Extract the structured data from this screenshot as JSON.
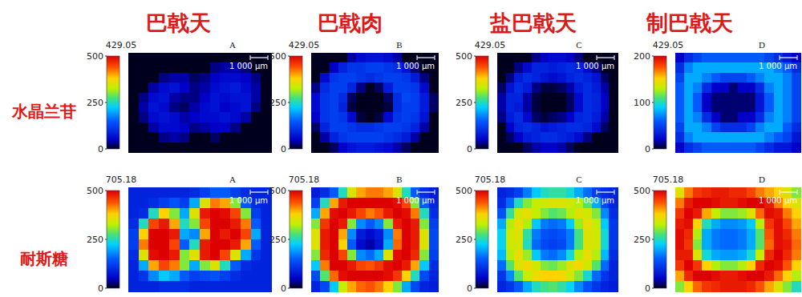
{
  "figure": {
    "column_labels": [
      "巴戟天",
      "巴戟肉",
      "盐巴戟天",
      "制巴戟天"
    ],
    "row_labels": [
      "水晶兰苷",
      "耐斯糖"
    ]
  },
  "chart_data": [
    {
      "type": "heatmap",
      "title": "429.05",
      "label": "A",
      "scale_bar": "1 000 μm",
      "color_range": [
        0,
        500
      ],
      "color_ticks": [
        0,
        250,
        500
      ],
      "cells": [
        [
          0,
          0,
          0,
          0,
          0,
          0,
          0,
          0,
          0,
          0,
          0,
          0,
          0,
          0
        ],
        [
          0,
          0,
          0,
          0,
          0,
          0,
          0,
          0,
          30,
          40,
          40,
          30,
          0,
          0
        ],
        [
          0,
          0,
          0,
          30,
          40,
          40,
          20,
          30,
          50,
          60,
          60,
          50,
          30,
          0
        ],
        [
          0,
          0,
          40,
          60,
          70,
          50,
          30,
          40,
          60,
          70,
          80,
          60,
          40,
          0
        ],
        [
          0,
          30,
          60,
          70,
          40,
          30,
          30,
          50,
          70,
          60,
          70,
          70,
          40,
          0
        ],
        [
          0,
          40,
          70,
          60,
          30,
          20,
          40,
          60,
          70,
          50,
          60,
          70,
          30,
          0
        ],
        [
          0,
          30,
          60,
          70,
          60,
          40,
          50,
          60,
          60,
          70,
          60,
          40,
          0,
          0
        ],
        [
          0,
          0,
          40,
          60,
          60,
          50,
          30,
          40,
          50,
          50,
          30,
          0,
          0,
          0
        ],
        [
          0,
          0,
          0,
          30,
          40,
          30,
          0,
          0,
          20,
          0,
          0,
          0,
          0,
          0
        ],
        [
          0,
          0,
          0,
          0,
          0,
          0,
          0,
          0,
          0,
          0,
          0,
          0,
          0,
          0
        ]
      ]
    },
    {
      "type": "heatmap",
      "title": "429.05",
      "label": "B",
      "scale_bar": "1 000 μm",
      "color_range": [
        0,
        500
      ],
      "color_ticks": [
        0,
        250,
        500
      ],
      "cells": [
        [
          0,
          0,
          0,
          0,
          40,
          60,
          70,
          70,
          60,
          40,
          0,
          0,
          0,
          0
        ],
        [
          0,
          0,
          50,
          90,
          110,
          110,
          120,
          120,
          110,
          100,
          70,
          30,
          0,
          0
        ],
        [
          0,
          60,
          110,
          120,
          120,
          110,
          100,
          110,
          120,
          120,
          110,
          80,
          30,
          0
        ],
        [
          30,
          100,
          120,
          120,
          90,
          30,
          0,
          20,
          80,
          120,
          120,
          110,
          60,
          0
        ],
        [
          60,
          110,
          120,
          100,
          20,
          0,
          0,
          0,
          20,
          100,
          130,
          120,
          80,
          20
        ],
        [
          60,
          110,
          120,
          90,
          10,
          0,
          0,
          0,
          10,
          100,
          120,
          120,
          80,
          20
        ],
        [
          50,
          110,
          120,
          110,
          60,
          10,
          0,
          10,
          60,
          110,
          120,
          110,
          70,
          0
        ],
        [
          20,
          90,
          120,
          120,
          110,
          100,
          100,
          110,
          120,
          120,
          110,
          90,
          40,
          0
        ],
        [
          0,
          40,
          90,
          110,
          120,
          120,
          120,
          120,
          110,
          100,
          80,
          40,
          0,
          0
        ],
        [
          0,
          0,
          20,
          50,
          70,
          80,
          80,
          70,
          60,
          40,
          20,
          0,
          0,
          0
        ]
      ]
    },
    {
      "type": "heatmap",
      "title": "429.05",
      "label": "C",
      "scale_bar": "1 000 μm",
      "color_range": [
        0,
        500
      ],
      "color_ticks": [
        0,
        250,
        500
      ],
      "cells": [
        [
          0,
          0,
          0,
          0,
          30,
          50,
          60,
          60,
          50,
          30,
          0,
          0,
          0,
          0
        ],
        [
          0,
          0,
          30,
          60,
          90,
          90,
          80,
          90,
          100,
          90,
          60,
          30,
          0,
          0
        ],
        [
          0,
          30,
          80,
          100,
          90,
          70,
          60,
          70,
          90,
          100,
          90,
          70,
          20,
          0
        ],
        [
          20,
          70,
          100,
          80,
          30,
          10,
          10,
          20,
          40,
          80,
          100,
          80,
          40,
          0
        ],
        [
          40,
          90,
          90,
          40,
          10,
          0,
          0,
          0,
          20,
          60,
          100,
          90,
          50,
          0
        ],
        [
          40,
          90,
          80,
          40,
          10,
          0,
          0,
          0,
          20,
          60,
          100,
          90,
          50,
          0
        ],
        [
          30,
          80,
          100,
          60,
          20,
          10,
          20,
          30,
          50,
          90,
          100,
          80,
          40,
          0
        ],
        [
          0,
          50,
          90,
          100,
          90,
          70,
          80,
          90,
          100,
          100,
          90,
          60,
          20,
          0
        ],
        [
          0,
          20,
          50,
          80,
          90,
          100,
          100,
          90,
          80,
          60,
          30,
          0,
          0,
          0
        ],
        [
          0,
          0,
          0,
          20,
          40,
          50,
          50,
          40,
          20,
          0,
          0,
          0,
          0,
          0
        ]
      ]
    },
    {
      "type": "heatmap",
      "title": "429.05",
      "label": "D",
      "scale_bar": "1 000 μm",
      "color_range": [
        0,
        200
      ],
      "color_ticks": [
        0,
        100,
        200
      ],
      "cells": [
        [
          20,
          40,
          50,
          60,
          60,
          60,
          60,
          60,
          60,
          60,
          50,
          40,
          30,
          20
        ],
        [
          40,
          70,
          80,
          80,
          80,
          80,
          80,
          80,
          80,
          80,
          80,
          70,
          60,
          40
        ],
        [
          50,
          80,
          80,
          70,
          60,
          50,
          50,
          50,
          60,
          70,
          80,
          80,
          70,
          50
        ],
        [
          60,
          80,
          70,
          40,
          20,
          20,
          10,
          20,
          20,
          40,
          70,
          80,
          70,
          50
        ],
        [
          60,
          80,
          60,
          20,
          10,
          10,
          10,
          10,
          10,
          30,
          60,
          80,
          70,
          50
        ],
        [
          60,
          80,
          60,
          20,
          10,
          10,
          10,
          10,
          10,
          30,
          60,
          80,
          70,
          50
        ],
        [
          60,
          80,
          70,
          40,
          20,
          10,
          10,
          20,
          20,
          40,
          70,
          80,
          70,
          50
        ],
        [
          50,
          80,
          80,
          70,
          50,
          40,
          40,
          40,
          50,
          70,
          80,
          80,
          60,
          40
        ],
        [
          40,
          70,
          80,
          80,
          80,
          80,
          80,
          80,
          80,
          80,
          70,
          60,
          50,
          30
        ],
        [
          20,
          40,
          50,
          60,
          60,
          60,
          60,
          60,
          60,
          50,
          40,
          30,
          30,
          20
        ]
      ]
    },
    {
      "type": "heatmap",
      "title": "705.18",
      "label": "A",
      "scale_bar": "1 000 μm",
      "color_range": [
        0,
        500
      ],
      "color_ticks": [
        0,
        250,
        500
      ],
      "cells": [
        [
          90,
          90,
          90,
          90,
          90,
          90,
          100,
          120,
          150,
          150,
          120,
          100,
          90,
          90
        ],
        [
          90,
          90,
          100,
          120,
          140,
          120,
          200,
          350,
          420,
          400,
          300,
          150,
          100,
          90
        ],
        [
          90,
          100,
          250,
          380,
          300,
          200,
          350,
          480,
          500,
          490,
          450,
          300,
          120,
          90
        ],
        [
          100,
          250,
          450,
          480,
          400,
          250,
          300,
          450,
          500,
          500,
          480,
          420,
          150,
          90
        ],
        [
          120,
          380,
          500,
          500,
          480,
          200,
          180,
          400,
          500,
          480,
          500,
          450,
          200,
          90
        ],
        [
          120,
          420,
          500,
          500,
          450,
          150,
          250,
          480,
          500,
          500,
          480,
          400,
          150,
          90
        ],
        [
          100,
          350,
          490,
          500,
          480,
          300,
          350,
          480,
          500,
          450,
          350,
          200,
          110,
          90
        ],
        [
          90,
          200,
          400,
          450,
          420,
          300,
          200,
          300,
          350,
          250,
          150,
          100,
          90,
          90
        ],
        [
          90,
          110,
          180,
          220,
          200,
          150,
          120,
          130,
          140,
          120,
          100,
          90,
          90,
          90
        ],
        [
          90,
          90,
          90,
          100,
          100,
          100,
          90,
          90,
          90,
          90,
          90,
          90,
          90,
          90
        ]
      ]
    },
    {
      "type": "heatmap",
      "title": "705.18",
      "label": "B",
      "scale_bar": "1 000 μm",
      "color_range": [
        0,
        500
      ],
      "color_ticks": [
        0,
        250,
        500
      ],
      "cells": [
        [
          80,
          100,
          150,
          250,
          350,
          400,
          420,
          420,
          400,
          350,
          250,
          150,
          100,
          80
        ],
        [
          120,
          250,
          400,
          480,
          500,
          500,
          500,
          500,
          500,
          490,
          450,
          300,
          150,
          90
        ],
        [
          200,
          400,
          490,
          500,
          480,
          450,
          420,
          440,
          480,
          500,
          490,
          420,
          250,
          100
        ],
        [
          300,
          460,
          500,
          480,
          300,
          180,
          150,
          180,
          300,
          480,
          500,
          480,
          300,
          120
        ],
        [
          350,
          480,
          500,
          400,
          180,
          80,
          60,
          80,
          180,
          420,
          500,
          480,
          350,
          130
        ],
        [
          350,
          480,
          500,
          380,
          150,
          60,
          40,
          70,
          200,
          430,
          500,
          480,
          350,
          130
        ],
        [
          300,
          470,
          500,
          450,
          300,
          180,
          160,
          200,
          350,
          490,
          500,
          470,
          300,
          120
        ],
        [
          220,
          420,
          500,
          500,
          480,
          450,
          440,
          460,
          490,
          500,
          480,
          400,
          220,
          100
        ],
        [
          130,
          280,
          430,
          490,
          500,
          500,
          500,
          500,
          490,
          460,
          380,
          250,
          130,
          90
        ],
        [
          90,
          130,
          220,
          330,
          400,
          430,
          440,
          420,
          380,
          300,
          200,
          130,
          90,
          80
        ]
      ]
    },
    {
      "type": "heatmap",
      "title": "705.18",
      "label": "C",
      "scale_bar": "1 000 μm",
      "color_range": [
        0,
        500
      ],
      "color_ticks": [
        0,
        250,
        500
      ],
      "cells": [
        [
          90,
          100,
          120,
          170,
          220,
          250,
          260,
          260,
          240,
          200,
          160,
          120,
          100,
          90
        ],
        [
          100,
          160,
          250,
          300,
          330,
          340,
          350,
          350,
          340,
          320,
          280,
          200,
          130,
          90
        ],
        [
          140,
          260,
          340,
          360,
          330,
          300,
          280,
          290,
          320,
          350,
          340,
          300,
          180,
          100
        ],
        [
          200,
          320,
          360,
          320,
          220,
          170,
          160,
          170,
          220,
          310,
          360,
          330,
          220,
          110
        ],
        [
          230,
          340,
          350,
          260,
          170,
          140,
          130,
          140,
          170,
          270,
          350,
          340,
          240,
          110
        ],
        [
          230,
          340,
          340,
          250,
          160,
          130,
          120,
          130,
          170,
          270,
          350,
          340,
          240,
          110
        ],
        [
          210,
          320,
          360,
          310,
          220,
          170,
          160,
          180,
          240,
          320,
          360,
          320,
          210,
          100
        ],
        [
          160,
          280,
          350,
          370,
          340,
          300,
          290,
          310,
          350,
          370,
          340,
          280,
          160,
          90
        ],
        [
          110,
          180,
          280,
          330,
          360,
          380,
          380,
          370,
          340,
          300,
          240,
          160,
          110,
          90
        ],
        [
          90,
          110,
          150,
          200,
          250,
          270,
          280,
          260,
          230,
          180,
          140,
          110,
          90,
          80
        ]
      ]
    },
    {
      "type": "heatmap",
      "title": "705.18",
      "label": "D",
      "scale_bar": "1 000 μm",
      "color_range": [
        0,
        500
      ],
      "color_ticks": [
        0,
        250,
        500
      ],
      "cells": [
        [
          350,
          420,
          460,
          470,
          480,
          480,
          470,
          470,
          450,
          420,
          400,
          380,
          350,
          300
        ],
        [
          420,
          480,
          500,
          500,
          490,
          480,
          480,
          490,
          500,
          500,
          480,
          420,
          380,
          350
        ],
        [
          460,
          500,
          480,
          400,
          330,
          300,
          300,
          310,
          350,
          430,
          490,
          480,
          420,
          380
        ],
        [
          480,
          490,
          380,
          250,
          200,
          180,
          180,
          190,
          220,
          320,
          460,
          490,
          450,
          400
        ],
        [
          490,
          470,
          320,
          200,
          170,
          160,
          160,
          170,
          200,
          280,
          440,
          490,
          470,
          420
        ],
        [
          490,
          460,
          300,
          200,
          170,
          160,
          160,
          170,
          200,
          280,
          430,
          490,
          480,
          430
        ],
        [
          480,
          480,
          350,
          240,
          200,
          190,
          190,
          200,
          240,
          330,
          470,
          500,
          470,
          420
        ],
        [
          460,
          500,
          460,
          380,
          320,
          300,
          300,
          320,
          380,
          470,
          500,
          490,
          440,
          380
        ],
        [
          400,
          470,
          500,
          500,
          490,
          480,
          480,
          490,
          500,
          500,
          480,
          430,
          380,
          320
        ],
        [
          300,
          380,
          430,
          460,
          470,
          480,
          480,
          480,
          470,
          440,
          400,
          350,
          300,
          250
        ]
      ]
    }
  ]
}
